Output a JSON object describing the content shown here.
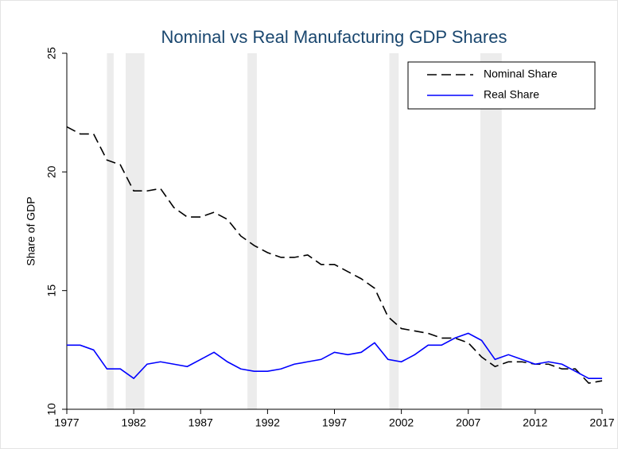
{
  "chart_data": {
    "type": "line",
    "title": "Nominal vs Real Manufacturing GDP Shares",
    "ylabel": "Share of GDP",
    "x": [
      1977,
      1978,
      1979,
      1980,
      1981,
      1982,
      1983,
      1984,
      1985,
      1986,
      1987,
      1988,
      1989,
      1990,
      1991,
      1992,
      1993,
      1994,
      1995,
      1996,
      1997,
      1998,
      1999,
      2000,
      2001,
      2002,
      2003,
      2004,
      2005,
      2006,
      2007,
      2008,
      2009,
      2010,
      2011,
      2012,
      2013,
      2014,
      2015,
      2016,
      2017
    ],
    "series": [
      {
        "name": "Nominal Share",
        "color": "#000000",
        "style": "dashed",
        "values": [
          21.9,
          21.6,
          21.6,
          20.5,
          20.3,
          19.2,
          19.2,
          19.3,
          18.5,
          18.1,
          18.1,
          18.3,
          18.0,
          17.3,
          16.9,
          16.6,
          16.4,
          16.4,
          16.5,
          16.1,
          16.1,
          15.8,
          15.5,
          15.1,
          13.9,
          13.4,
          13.3,
          13.2,
          13.0,
          13.0,
          12.8,
          12.2,
          11.8,
          12.0,
          12.0,
          11.9,
          11.9,
          11.7,
          11.7,
          11.1,
          11.2
        ]
      },
      {
        "name": "Real Share",
        "color": "#0000ff",
        "style": "solid",
        "values": [
          12.7,
          12.7,
          12.5,
          11.7,
          11.7,
          11.3,
          11.9,
          12.0,
          11.9,
          11.8,
          12.1,
          12.4,
          12.0,
          11.7,
          11.6,
          11.6,
          11.7,
          11.9,
          12.0,
          12.1,
          12.4,
          12.3,
          12.4,
          12.8,
          12.1,
          12.0,
          12.3,
          12.7,
          12.7,
          13.0,
          13.2,
          12.9,
          12.1,
          12.3,
          12.1,
          11.9,
          12.0,
          11.9,
          11.6,
          11.3,
          11.3
        ]
      }
    ],
    "shaded_periods": [
      [
        1980.0,
        1980.5
      ],
      [
        1981.4,
        1982.8
      ],
      [
        1990.5,
        1991.2
      ],
      [
        2001.1,
        2001.8
      ],
      [
        2007.9,
        2009.5
      ]
    ],
    "shade_color": "#ececec",
    "xlim": [
      1977,
      2017
    ],
    "xticks": [
      1977,
      1982,
      1987,
      1992,
      1997,
      2002,
      2007,
      2012,
      2017
    ],
    "ylim": [
      10,
      25
    ],
    "yticks": [
      10,
      15,
      20,
      25
    ],
    "grid": false,
    "legend": "top-right"
  }
}
